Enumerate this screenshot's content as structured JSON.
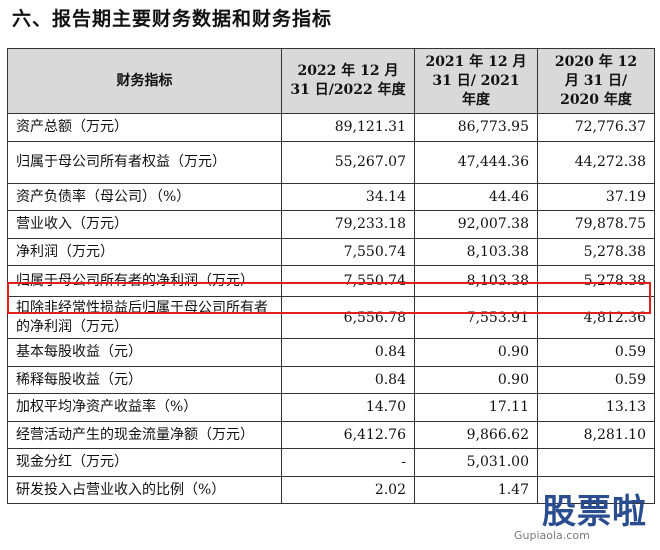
{
  "section_title": "六、报告期主要财务数据和财务指标",
  "header": {
    "col0": "财务指标",
    "col1": "2022 年 12 月 31 日/2022 年度",
    "col2": "2021 年 12 月 31 日/ 2021 年度",
    "col3": "2020 年 12 月 31 日/ 2020 年度"
  },
  "rows": [
    {
      "label": "资产总额（万元）",
      "v2022": "89,121.31",
      "v2021": "86,773.95",
      "v2020": "72,776.37"
    },
    {
      "label": "归属于母公司所有者权益（万元）",
      "v2022": "55,267.07",
      "v2021": "47,444.36",
      "v2020": "44,272.38"
    },
    {
      "label": "资产负债率（母公司）（%）",
      "v2022": "34.14",
      "v2021": "44.46",
      "v2020": "37.19"
    },
    {
      "label": "营业收入（万元）",
      "v2022": "79,233.18",
      "v2021": "92,007.38",
      "v2020": "79,878.75"
    },
    {
      "label": "净利润（万元）",
      "v2022": "7,550.74",
      "v2021": "8,103.38",
      "v2020": "5,278.38"
    },
    {
      "label": "归属于母公司所有者的净利润（万元）",
      "v2022": "7,550.74",
      "v2021": "8,103.38",
      "v2020": "5,278.38"
    },
    {
      "label": "扣除非经常性损益后归属于母公司所有者的净利润（万元）",
      "v2022": "6,556.78",
      "v2021": "7,553.91",
      "v2020": "4,812.36"
    },
    {
      "label": "基本每股收益（元）",
      "v2022": "0.84",
      "v2021": "0.90",
      "v2020": "0.59"
    },
    {
      "label": "稀释每股收益（元）",
      "v2022": "0.84",
      "v2021": "0.90",
      "v2020": "0.59"
    },
    {
      "label": "加权平均净资产收益率（%）",
      "v2022": "14.70",
      "v2021": "17.11",
      "v2020": "13.13"
    },
    {
      "label": "经营活动产生的现金流量净额（万元）",
      "v2022": "6,412.76",
      "v2021": "9,866.62",
      "v2020": "8,281.10"
    },
    {
      "label": "现金分红（万元）",
      "v2022": "-",
      "v2021": "5,031.00",
      "v2020": ""
    },
    {
      "label": "研发投入占营业收入的比例（%）",
      "v2022": "2.02",
      "v2021": "1.47",
      "v2020": ""
    }
  ],
  "watermark": {
    "logo": "股票啦",
    "url": "Gupiaola.com"
  },
  "colors": {
    "header_bg": "#d9d9d9",
    "highlight_border": "#e01e1e"
  }
}
